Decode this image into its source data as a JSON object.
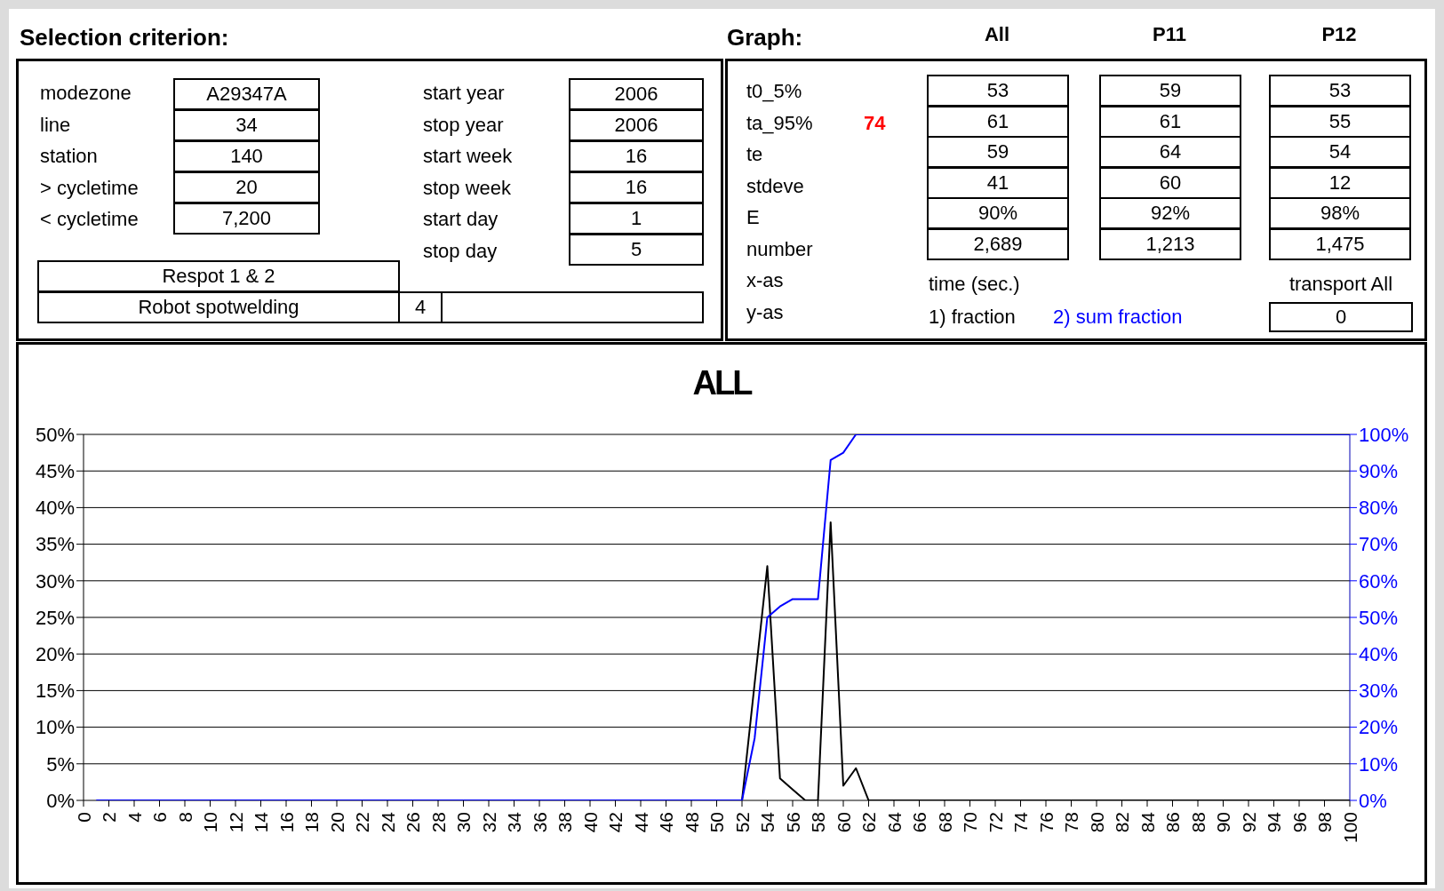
{
  "chart_data": [
    {
      "type": "other",
      "title": "Selection criterion:",
      "annotations": [
        "modezone",
        "A29347A",
        "line",
        "34",
        "station",
        "140",
        "> cycletime",
        "20",
        "< cycletime",
        "7,200",
        "start year",
        "2006",
        "stop year",
        "2006",
        "start week",
        "16",
        "stop week",
        "16",
        "start day",
        "1",
        "stop day",
        "5",
        "Respot 1 & 2",
        "Robot spotwelding",
        "4"
      ]
    },
    {
      "type": "other",
      "title": "Graph:",
      "annotations": [
        "All",
        "P11",
        "P12",
        "t0_5%",
        "ta_95%",
        "te",
        "stdeve",
        "E",
        "number",
        "x-as",
        "y-as",
        "74",
        "53",
        "59",
        "53",
        "61",
        "61",
        "55",
        "59",
        "64",
        "54",
        "41",
        "60",
        "12",
        "90%",
        "92%",
        "98%",
        "2,689",
        "1,213",
        "1,475",
        "time (sec.)",
        "transport All",
        "1) fraction",
        "2) sum fraction",
        "0"
      ]
    },
    {
      "type": "line",
      "title": "ALL",
      "x": [
        1,
        2,
        3,
        4,
        5,
        6,
        7,
        8,
        9,
        10,
        11,
        12,
        13,
        14,
        15,
        16,
        17,
        18,
        19,
        20,
        21,
        22,
        23,
        24,
        25,
        26,
        27,
        28,
        29,
        30,
        31,
        32,
        33,
        34,
        35,
        36,
        37,
        38,
        39,
        40,
        41,
        42,
        43,
        44,
        45,
        46,
        47,
        48,
        49,
        50,
        51,
        52,
        53,
        54,
        55,
        56,
        57,
        58,
        59,
        60,
        61,
        62,
        63,
        64,
        65,
        66,
        67,
        68,
        69,
        70,
        71,
        72,
        73,
        74,
        75,
        76,
        77,
        78,
        79,
        80,
        81,
        82,
        83,
        84,
        85,
        86,
        87,
        88,
        89,
        90,
        91,
        92,
        93,
        94,
        95,
        96,
        97,
        98,
        99,
        100
      ],
      "series": [
        {
          "color": "#000000",
          "values": [
            null,
            null,
            null,
            null,
            null,
            null,
            null,
            null,
            null,
            null,
            null,
            null,
            null,
            null,
            null,
            null,
            null,
            null,
            null,
            null,
            null,
            null,
            null,
            null,
            null,
            null,
            null,
            null,
            null,
            null,
            null,
            null,
            null,
            null,
            null,
            null,
            null,
            null,
            null,
            null,
            null,
            null,
            null,
            null,
            null,
            null,
            null,
            null,
            null,
            null,
            null,
            0,
            16,
            32,
            3,
            1.5,
            0,
            0,
            38,
            2,
            4.4,
            0,
            0,
            0,
            0,
            0,
            0,
            0,
            0,
            0,
            0,
            0,
            0,
            0,
            0,
            0,
            0,
            0,
            0,
            0,
            0,
            0,
            0,
            0,
            0,
            0,
            0,
            0,
            0,
            0,
            0,
            0,
            0,
            0,
            0,
            0,
            0,
            0,
            0,
            0
          ]
        },
        {
          "color": "#0000ff",
          "axis": "y2",
          "values": [
            0,
            0,
            0,
            0,
            0,
            0,
            0,
            0,
            0,
            0,
            0,
            0,
            0,
            0,
            0,
            0,
            0,
            0,
            0,
            0,
            0,
            0,
            0,
            0,
            0,
            0,
            0,
            0,
            0,
            0,
            0,
            0,
            0,
            0,
            0,
            0,
            0,
            0,
            0,
            0,
            0,
            0,
            0,
            0,
            0,
            0,
            0,
            0,
            0,
            0,
            0,
            0,
            17,
            50,
            53,
            55,
            55,
            55,
            93,
            95,
            100,
            100,
            100,
            100,
            100,
            100,
            100,
            100,
            100,
            100,
            100,
            100,
            100,
            100,
            100,
            100,
            100,
            100,
            100,
            100,
            100,
            100,
            100,
            100,
            100,
            100,
            100,
            100,
            100,
            100,
            100,
            100,
            100,
            100,
            100,
            100,
            100,
            100,
            100,
            100
          ]
        }
      ],
      "xlim": [
        0,
        100
      ],
      "xticks": [
        0,
        2,
        4,
        6,
        8,
        10,
        12,
        14,
        16,
        18,
        20,
        22,
        24,
        26,
        28,
        30,
        32,
        34,
        36,
        38,
        40,
        42,
        44,
        46,
        48,
        50,
        52,
        54,
        56,
        58,
        60,
        62,
        64,
        66,
        68,
        70,
        72,
        74,
        76,
        78,
        80,
        82,
        84,
        86,
        88,
        90,
        92,
        94,
        96,
        98,
        100
      ],
      "ylim": [
        0,
        50
      ],
      "yticks": [
        {
          "value": 0,
          "label": "0%"
        },
        {
          "value": 5,
          "label": "5%"
        },
        {
          "value": 10,
          "label": "10%"
        },
        {
          "value": 15,
          "label": "15%"
        },
        {
          "value": 20,
          "label": "20%"
        },
        {
          "value": 25,
          "label": "25%"
        },
        {
          "value": 30,
          "label": "30%"
        },
        {
          "value": 35,
          "label": "35%"
        },
        {
          "value": 40,
          "label": "40%"
        },
        {
          "value": 45,
          "label": "45%"
        },
        {
          "value": 50,
          "label": "50%"
        }
      ],
      "y2lim": [
        0,
        100
      ],
      "y2ticks": [
        {
          "value": 0,
          "label": "0%"
        },
        {
          "value": 10,
          "label": "10%"
        },
        {
          "value": 20,
          "label": "20%"
        },
        {
          "value": 30,
          "label": "30%"
        },
        {
          "value": 40,
          "label": "40%"
        },
        {
          "value": 50,
          "label": "50%"
        },
        {
          "value": 60,
          "label": "60%"
        },
        {
          "value": 70,
          "label": "70%"
        },
        {
          "value": 80,
          "label": "80%"
        },
        {
          "value": 90,
          "label": "90%"
        },
        {
          "value": 100,
          "label": "100%"
        }
      ],
      "grid": "y",
      "legend": false,
      "marker": "none",
      "line_style": "solid"
    }
  ]
}
